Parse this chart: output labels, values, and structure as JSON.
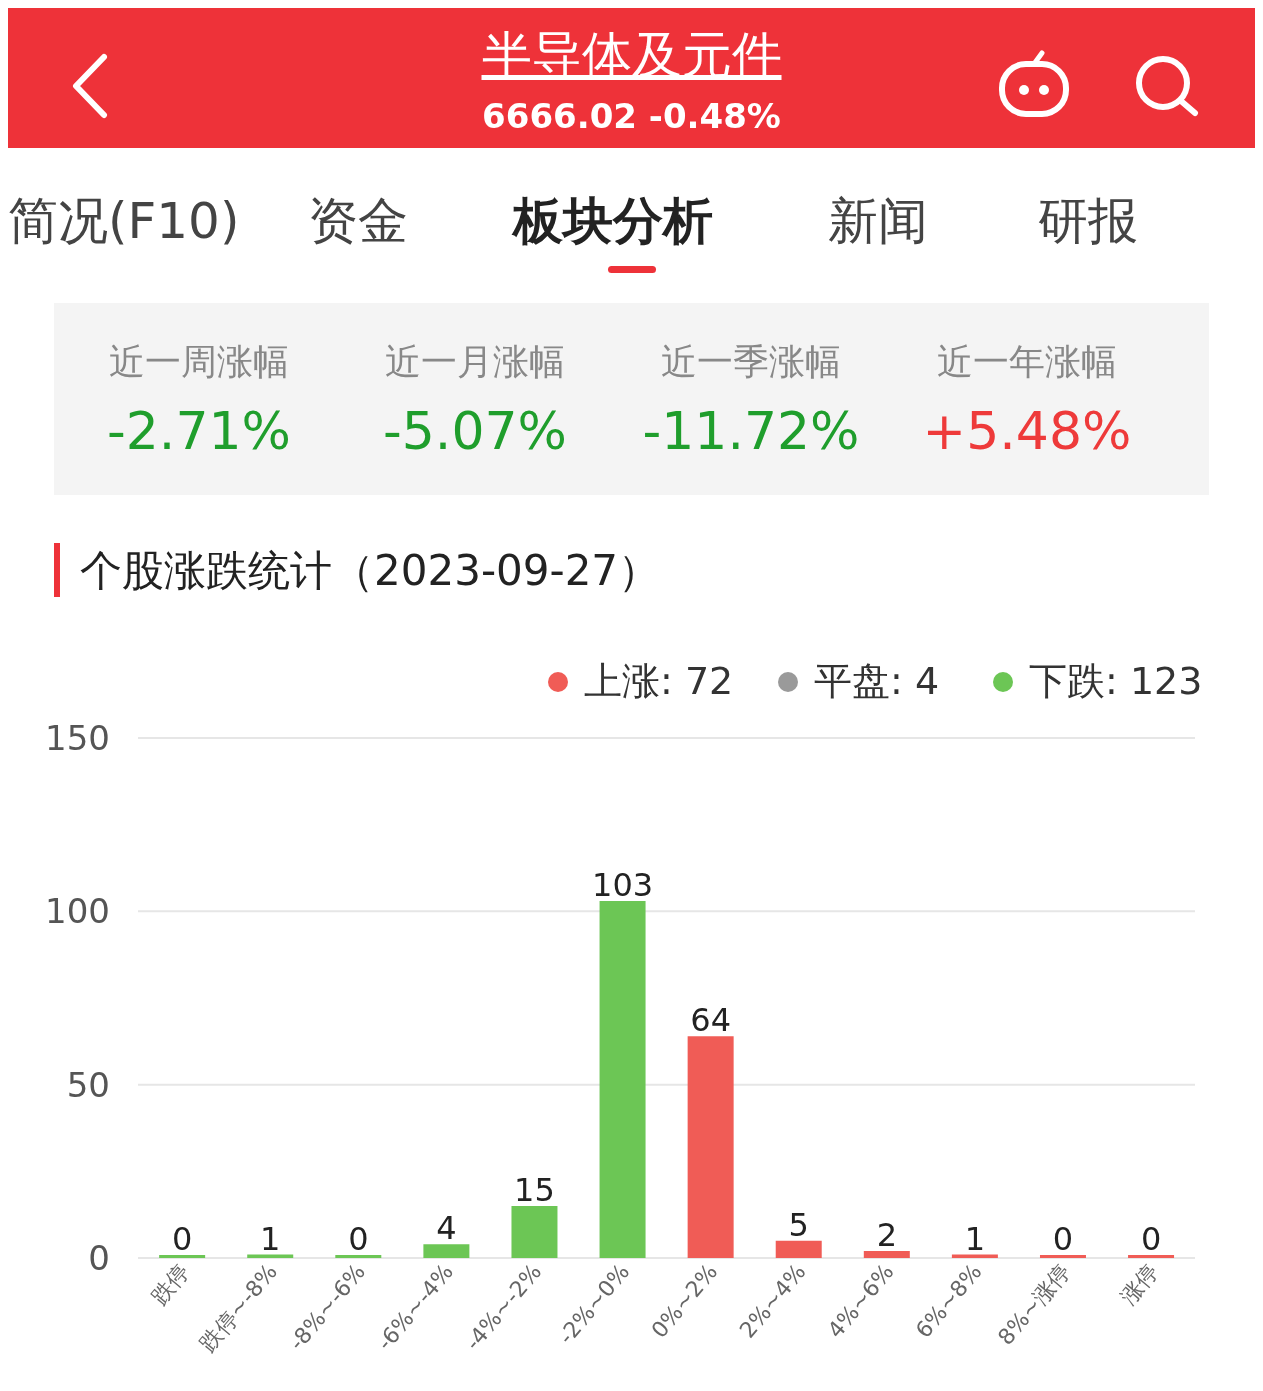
{
  "chart_data": {
    "type": "bar",
    "title": "个股涨跌统计（2023-09-27）",
    "categories": [
      "跌停",
      "跌停~-8%",
      "-8%~-6%",
      "-6%~-4%",
      "-4%~-2%",
      "-2%~0%",
      "0%~2%",
      "2%~4%",
      "4%~6%",
      "6%~8%",
      "8%~涨停",
      "涨停"
    ],
    "values": [
      0,
      1,
      0,
      4,
      15,
      103,
      64,
      5,
      2,
      1,
      0,
      0
    ],
    "colors": [
      "#6cc655",
      "#6cc655",
      "#6cc655",
      "#6cc655",
      "#6cc655",
      "#6cc655",
      "#f05c56",
      "#f05c56",
      "#f05c56",
      "#f05c56",
      "#f05c56",
      "#f05c56"
    ],
    "ylim": [
      0,
      150
    ],
    "yticks": [
      0,
      50,
      100,
      150
    ],
    "grid": "y",
    "data_labels": true,
    "annotations": [
      "半导体及元件",
      "6666.02 -0.48%",
      "简况(F10)",
      "资金",
      "板块分析",
      "新闻",
      "研报",
      "近一周涨幅",
      "-2.71%",
      "近一月涨幅",
      "-5.07%",
      "近一季涨幅",
      "-11.72%",
      "近一年涨幅",
      "+5.48%",
      "上涨: 72",
      "平盘: 4",
      "下跌: 123"
    ]
  }
}
